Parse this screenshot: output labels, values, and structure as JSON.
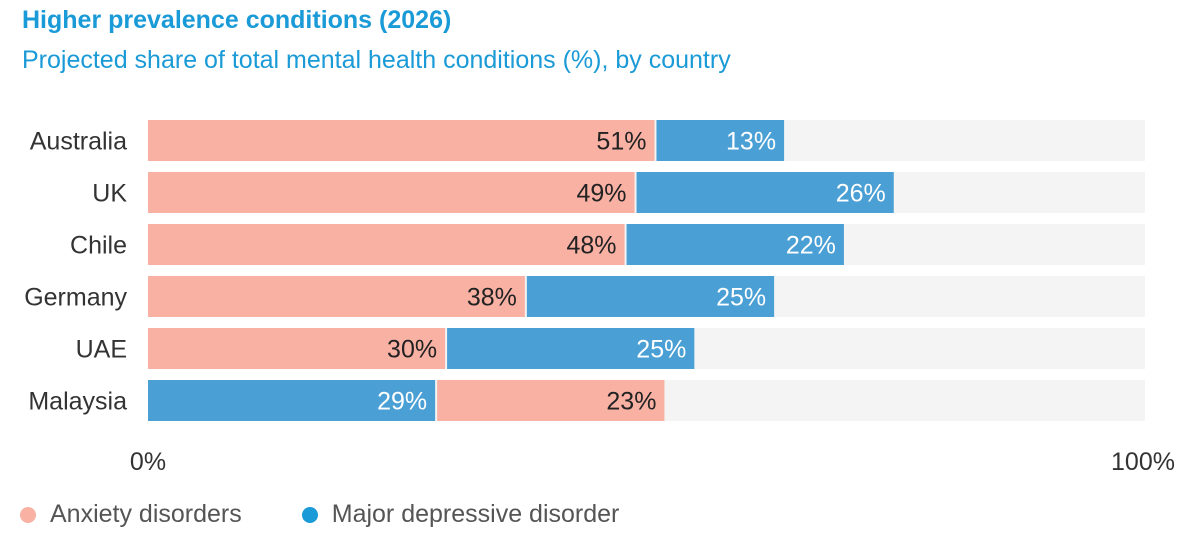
{
  "title": "Higher prevalence conditions (2026)",
  "subtitle": "Projected share of total mental health conditions (%), by country",
  "colors": {
    "anxiety": "#f9b1a4",
    "depression": "#4a9fd4",
    "track": "#f4f4f4",
    "title": "#1a9ad6"
  },
  "chart_data": {
    "type": "bar",
    "orientation": "horizontal",
    "stacked": true,
    "xlim": [
      0,
      100
    ],
    "x_ticks": [
      "0%",
      "100%"
    ],
    "categories": [
      "Australia",
      "UK",
      "Chile",
      "Germany",
      "UAE",
      "Malaysia"
    ],
    "series": [
      {
        "name": "Anxiety disorders",
        "values": [
          51,
          49,
          48,
          38,
          30,
          23
        ]
      },
      {
        "name": "Major depressive disorder",
        "values": [
          13,
          26,
          22,
          25,
          25,
          29
        ]
      }
    ],
    "segment_order": [
      [
        "Anxiety disorders",
        "Major depressive disorder"
      ],
      [
        "Anxiety disorders",
        "Major depressive disorder"
      ],
      [
        "Anxiety disorders",
        "Major depressive disorder"
      ],
      [
        "Anxiety disorders",
        "Major depressive disorder"
      ],
      [
        "Anxiety disorders",
        "Major depressive disorder"
      ],
      [
        "Major depressive disorder",
        "Anxiety disorders"
      ]
    ],
    "legend": "bottom-left",
    "grid": false
  },
  "legend": [
    {
      "label": "Anxiety disorders",
      "color_key": "anxiety"
    },
    {
      "label": "Major depressive disorder",
      "color_key": "depression"
    }
  ]
}
